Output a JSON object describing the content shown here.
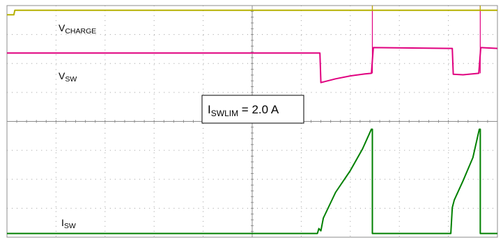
{
  "chart_data": {
    "type": "line",
    "title": "",
    "grid": true,
    "grid_divisions": {
      "x": 10,
      "y": 8
    },
    "x_range": [
      0,
      10
    ],
    "series": [
      {
        "name": "VCHARGE",
        "label_main": "V",
        "label_sub": "CHARGE",
        "color": "#b5b000",
        "points": [
          [
            0,
            7.68
          ],
          [
            0.14,
            7.68
          ],
          [
            0.16,
            7.84
          ],
          [
            10,
            7.84
          ]
        ],
        "spikes": [
          {
            "x": 7.45,
            "to": 8.0
          },
          {
            "x": 9.65,
            "to": 8.0
          }
        ]
      },
      {
        "name": "VSW",
        "label_main": "V",
        "label_sub": "SW",
        "color": "#e0007f",
        "points": [
          [
            0,
            6.36
          ],
          [
            6.38,
            6.36
          ],
          [
            6.4,
            5.34
          ],
          [
            6.7,
            5.47
          ],
          [
            7.0,
            5.57
          ],
          [
            7.3,
            5.64
          ],
          [
            7.43,
            5.66
          ],
          [
            7.47,
            6.55
          ],
          [
            9.08,
            6.52
          ],
          [
            9.1,
            5.63
          ],
          [
            9.3,
            5.61
          ],
          [
            9.62,
            5.66
          ],
          [
            9.66,
            6.55
          ],
          [
            10,
            6.52
          ]
        ],
        "spikes": [
          {
            "x": 7.45,
            "to": 8.0
          },
          {
            "x": 9.65,
            "to": 8.0
          }
        ]
      },
      {
        "name": "ISW",
        "label_main": "I",
        "label_sub": "SW",
        "color": "#008000",
        "points": [
          [
            0,
            0.13
          ],
          [
            6.33,
            0.13
          ],
          [
            6.36,
            0.3
          ],
          [
            6.4,
            0.22
          ],
          [
            6.45,
            0.66
          ],
          [
            6.7,
            1.55
          ],
          [
            7.0,
            2.3
          ],
          [
            7.25,
            3.05
          ],
          [
            7.43,
            3.73
          ],
          [
            7.45,
            3.73
          ],
          [
            7.45,
            0.13
          ],
          [
            9.05,
            0.13
          ],
          [
            9.08,
            1.02
          ],
          [
            9.12,
            1.28
          ],
          [
            9.3,
            1.95
          ],
          [
            9.5,
            2.75
          ],
          [
            9.63,
            3.73
          ],
          [
            9.65,
            3.73
          ],
          [
            9.65,
            0.13
          ],
          [
            10,
            0.13
          ]
        ],
        "spikes": []
      }
    ],
    "annotations": [
      {
        "main": "I",
        "sub": "SWLIM",
        "suffix": " = 2.0 A"
      }
    ]
  }
}
